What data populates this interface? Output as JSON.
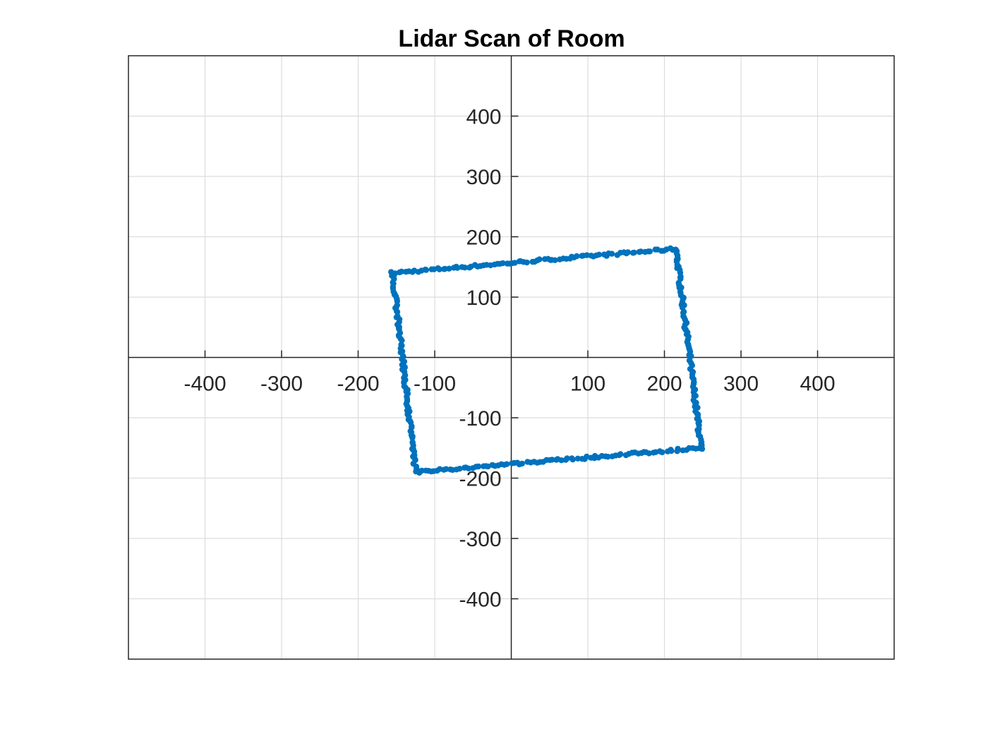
{
  "chart_data": {
    "type": "scatter",
    "title": "Lidar Scan of Room",
    "xlabel": "",
    "ylabel": "",
    "xlim": [
      -500,
      500
    ],
    "ylim": [
      -500,
      500
    ],
    "xticks": [
      -400,
      -300,
      -200,
      -100,
      100,
      200,
      300,
      400
    ],
    "yticks": [
      -400,
      -300,
      -200,
      -100,
      100,
      200,
      300,
      400
    ],
    "grid": true,
    "axis_location": "origin",
    "series_color": "#0072BD",
    "series": [
      {
        "corners": [
          [
            -155,
            140
          ],
          [
            215,
            180
          ],
          [
            248,
            -150
          ],
          [
            -125,
            -190
          ]
        ],
        "points_per_side": 90
      }
    ]
  }
}
